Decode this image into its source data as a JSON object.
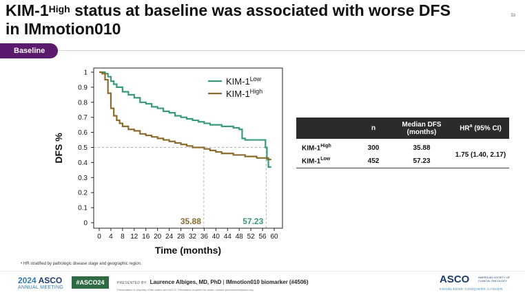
{
  "title": {
    "part1": "KIM-1",
    "part1_sup": "High",
    "part2": " status at baseline was associated with worse DFS",
    "line2": "in IMmotion010"
  },
  "page_number": "33",
  "badge": "Baseline",
  "colors": {
    "purple": "#5a1a6e",
    "kim_low": "#3a9a78",
    "kim_high": "#8b6a2b",
    "table_header": "#2b2b2b"
  },
  "chart_data": {
    "type": "line",
    "subtype": "kaplan-meier",
    "xlabel": "Time (months)",
    "ylabel": "DFS %",
    "xlim": [
      0,
      60
    ],
    "ylim": [
      0,
      1
    ],
    "xticks": [
      0,
      4,
      8,
      12,
      16,
      20,
      24,
      28,
      32,
      36,
      40,
      44,
      48,
      52,
      56,
      60
    ],
    "yticks": [
      0,
      0.1,
      0.2,
      0.3,
      0.4,
      0.5,
      0.6,
      0.7,
      0.8,
      0.9,
      1
    ],
    "ytick_labels": [
      "0",
      "0.1",
      "0.2",
      "0.3",
      "0.4",
      "0.5",
      "0.6",
      "0.7",
      "0.8",
      "0.9",
      "1"
    ],
    "grid": false,
    "legend_position": "top-right",
    "reference_line_y": 0.5,
    "series": [
      {
        "name": "KIM-1",
        "name_sup": "Low",
        "color": "#3a9a78",
        "median": 57.23,
        "median_label": "57.23",
        "x": [
          0,
          1,
          2,
          3,
          4,
          5,
          6,
          8,
          10,
          12,
          14,
          16,
          18,
          20,
          22,
          24,
          26,
          28,
          30,
          32,
          34,
          36,
          38,
          40,
          42,
          44,
          46,
          48,
          49,
          50,
          52,
          54,
          56,
          57,
          57.5,
          58,
          59
        ],
        "y": [
          1,
          1,
          0.99,
          0.97,
          0.94,
          0.92,
          0.9,
          0.87,
          0.85,
          0.83,
          0.8,
          0.79,
          0.77,
          0.76,
          0.74,
          0.73,
          0.71,
          0.7,
          0.69,
          0.68,
          0.67,
          0.66,
          0.65,
          0.65,
          0.64,
          0.64,
          0.63,
          0.62,
          0.56,
          0.55,
          0.55,
          0.55,
          0.55,
          0.5,
          0.42,
          0.37,
          0.37
        ]
      },
      {
        "name": "KIM-1",
        "name_sup": "High",
        "color": "#8b6a2b",
        "median": 35.88,
        "median_label": "35.88",
        "x": [
          0,
          1,
          2,
          3,
          4,
          5,
          6,
          7,
          8,
          10,
          12,
          14,
          16,
          18,
          20,
          22,
          24,
          26,
          28,
          30,
          32,
          34,
          36,
          38,
          40,
          42,
          44,
          46,
          48,
          50,
          52,
          54,
          56,
          58,
          59
        ],
        "y": [
          1,
          0.99,
          0.95,
          0.86,
          0.76,
          0.71,
          0.68,
          0.66,
          0.64,
          0.62,
          0.61,
          0.59,
          0.58,
          0.57,
          0.56,
          0.55,
          0.54,
          0.53,
          0.52,
          0.51,
          0.5,
          0.5,
          0.49,
          0.48,
          0.47,
          0.46,
          0.46,
          0.45,
          0.45,
          0.44,
          0.44,
          0.43,
          0.43,
          0.42,
          0.42
        ]
      }
    ]
  },
  "table": {
    "headers": {
      "col_n": "n",
      "col_median_line1": "Median DFS",
      "col_median_line2": "(months)",
      "col_hr": "HR",
      "col_hr_sup": "a",
      "col_hr_rest": " (95% CI)"
    },
    "rows": [
      {
        "label": "KIM-1",
        "label_sup": "High",
        "n": "300",
        "median": "35.88"
      },
      {
        "label": "KIM-1",
        "label_sup": "Low",
        "n": "452",
        "median": "57.23"
      }
    ],
    "hr": "1.75 (1.40, 2.17)"
  },
  "footnote": "ᵃ HR stratified by pathologic disease stage and geographic region.",
  "footer": {
    "year": "2024",
    "asco": "ASCO",
    "meeting": "ANNUAL MEETING",
    "hashtag": "#ASCO24",
    "presented_by": "PRESENTED BY:",
    "presenter": "Laurence Albiges, MD, PhD",
    "separator": " | ",
    "abstract": "IMmotion010 biomarker (#4506)",
    "disclaimer": "Presentation is property of the author and ASCO. Permission required for reuse; contact permissions@asco.org",
    "right_logo": "ASCO",
    "right_logo_society": "AMERICAN SOCIETY OF CLINICAL ONCOLOGY",
    "right_logo_tagline": "KNOWLEDGE CONQUERS CANCER"
  }
}
